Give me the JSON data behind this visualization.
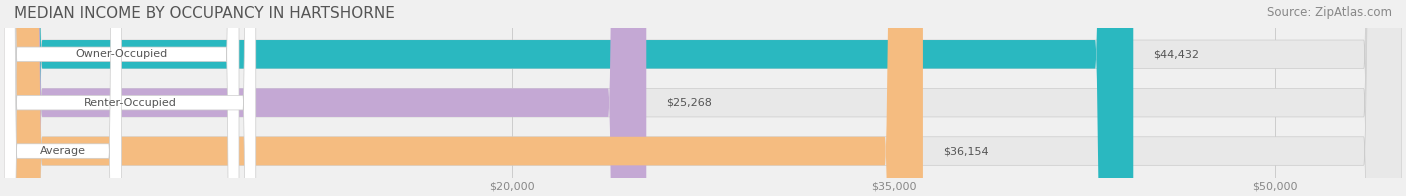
{
  "title": "MEDIAN INCOME BY OCCUPANCY IN HARTSHORNE",
  "source": "Source: ZipAtlas.com",
  "categories": [
    "Owner-Occupied",
    "Renter-Occupied",
    "Average"
  ],
  "values": [
    44432,
    25268,
    36154
  ],
  "bar_colors": [
    "#2ab8c0",
    "#c4a8d4",
    "#f5bc80"
  ],
  "bar_labels": [
    "$44,432",
    "$25,268",
    "$36,154"
  ],
  "x_ticks": [
    20000,
    35000,
    50000
  ],
  "x_tick_labels": [
    "$20,000",
    "$35,000",
    "$50,000"
  ],
  "xlim": [
    0,
    55000
  ],
  "background_color": "#f0f0f0",
  "bar_bg_color": "#e8e8e8",
  "title_fontsize": 11,
  "source_fontsize": 8.5
}
